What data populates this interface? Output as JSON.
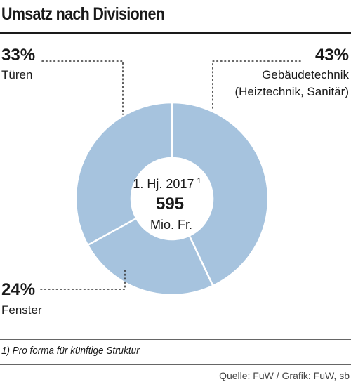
{
  "title": "Umsatz nach Divisionen",
  "colors": {
    "slice": "#a6c3de",
    "slice_border": "#ffffff",
    "text": "#1a1a1a"
  },
  "center": {
    "period": "1. Hj. 2017",
    "footnote_mark": "1",
    "total": "595",
    "unit": "Mio. Fr."
  },
  "footnote": "1) Pro forma für künftige Struktur",
  "source": "Quelle: FuW / Grafik: FuW, sb",
  "chart_data": {
    "type": "pie",
    "donut": true,
    "title": "Umsatz nach Divisionen",
    "slices": [
      {
        "label": "Gebäudetechnik (Heiztechnik, Sanitär)",
        "label_lines": [
          "Gebäudetechnik",
          "(Heiztechnik, Sanitär)"
        ],
        "value": 43,
        "value_label": "43%"
      },
      {
        "label": "Fenster",
        "label_lines": [
          "Fenster"
        ],
        "value": 24,
        "value_label": "24%"
      },
      {
        "label": "Türen",
        "label_lines": [
          "Türen"
        ],
        "value": 33,
        "value_label": "33%"
      }
    ],
    "unit": "%",
    "total": 595,
    "total_unit": "Mio. Fr."
  }
}
